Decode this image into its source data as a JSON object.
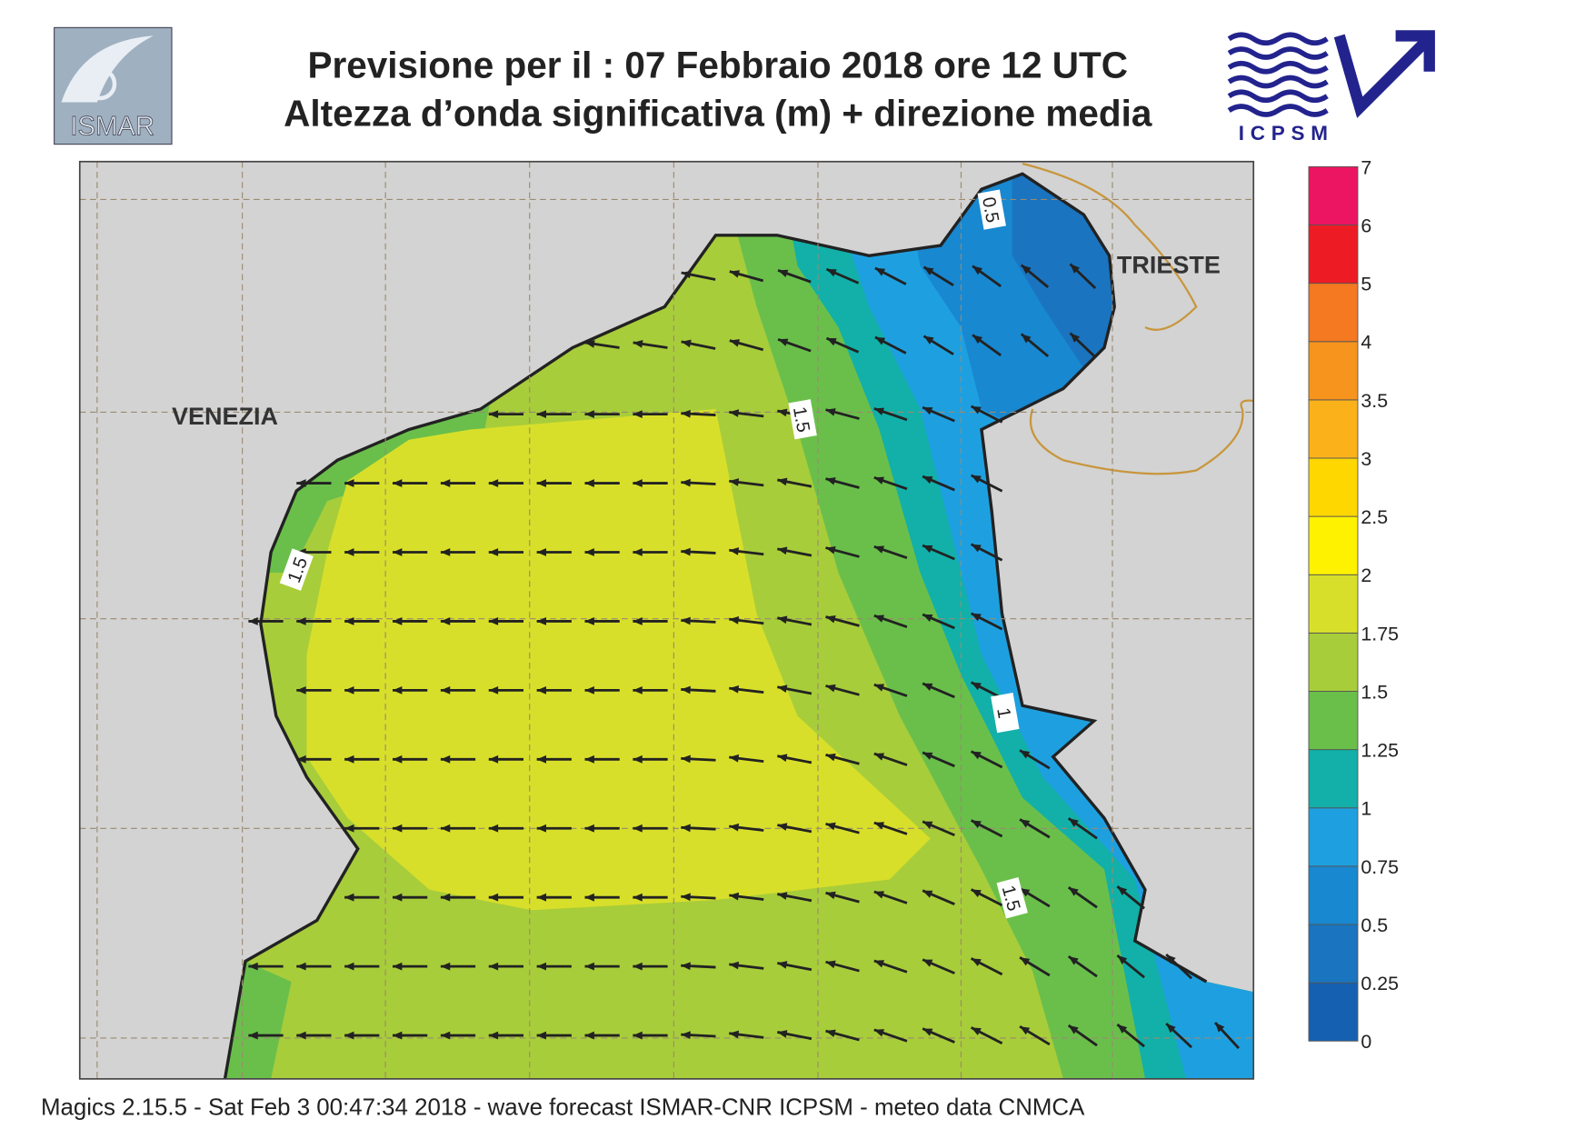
{
  "header": {
    "title": "Previsione per il  :  07  Febbraio 2018   ore 12 UTC",
    "subtitle": "Altezza d’onda significativa (m) + direzione media"
  },
  "logos": {
    "left": "ISMAR",
    "right": "ICPSM"
  },
  "map": {
    "places": [
      "VENEZIA",
      "TRIESTE"
    ],
    "contour_labels": [
      "1.5",
      "1.5",
      "1",
      "1.5",
      "0.5"
    ]
  },
  "colorbar": {
    "levels": [
      0,
      0.25,
      0.5,
      0.75,
      1,
      1.25,
      1.5,
      1.75,
      2,
      2.5,
      3,
      3.5,
      4,
      5,
      6,
      7
    ],
    "colors": [
      "#1560b0",
      "#1a74bf",
      "#1888d0",
      "#1ea0e0",
      "#12b0a8",
      "#6abf4b",
      "#a8cd3a",
      "#d8df2a",
      "#fff200",
      "#ffd700",
      "#fbb21a",
      "#f7941d",
      "#f47920",
      "#ed1c24",
      "#ec1561"
    ]
  },
  "footer": "Magics 2.15.5 - Sat Feb  3 00:47:34 2018 - wave forecast  ISMAR-CNR  ICPSM - meteo data    CNMCA"
}
